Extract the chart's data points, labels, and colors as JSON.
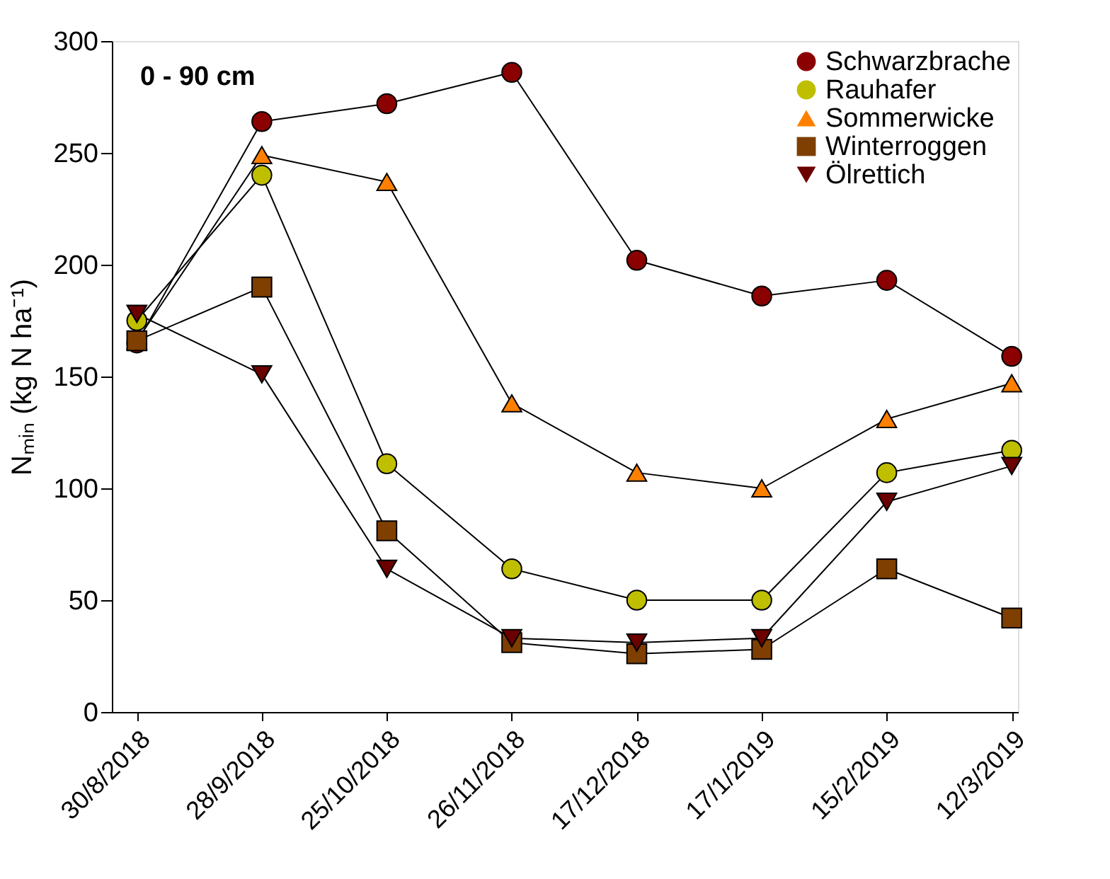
{
  "chart_data": {
    "type": "line",
    "ylabel": "Nₘᵢₙ (kg N ha⁻¹)",
    "annotations": [
      "0 - 90 cm"
    ],
    "categories": [
      "30/8/2018",
      "28/9/2018",
      "25/10/2018",
      "26/11/2018",
      "17/12/2018",
      "17/1/2019",
      "15/2/2019",
      "12/3/2019"
    ],
    "series": [
      {
        "name": "Schwarzbrache",
        "color": "#8b0000",
        "marker": "circle",
        "values": [
          165,
          264,
          272,
          286,
          202,
          186,
          193,
          159
        ]
      },
      {
        "name": "Rauhafer",
        "color": "#bfbf00",
        "marker": "circle",
        "values": [
          175,
          240,
          111,
          64,
          50,
          50,
          107,
          117
        ]
      },
      {
        "name": "Sommerwicke",
        "color": "#ff8000",
        "marker": "triangle",
        "values": [
          166,
          249,
          237,
          138,
          107,
          100,
          131,
          147
        ]
      },
      {
        "name": "Winterroggen",
        "color": "#7f3f00",
        "marker": "square",
        "values": [
          166,
          190,
          81,
          31,
          26,
          28,
          64,
          42
        ]
      },
      {
        "name": "Ölrettich",
        "color": "#6b0000",
        "marker": "triangle-down",
        "values": [
          178,
          151,
          64,
          33,
          31,
          33,
          94,
          110
        ]
      }
    ],
    "ylim": [
      0,
      300
    ],
    "yticks": [
      0,
      50,
      100,
      150,
      200,
      250,
      300
    ],
    "grid": false,
    "legend": "top right"
  }
}
